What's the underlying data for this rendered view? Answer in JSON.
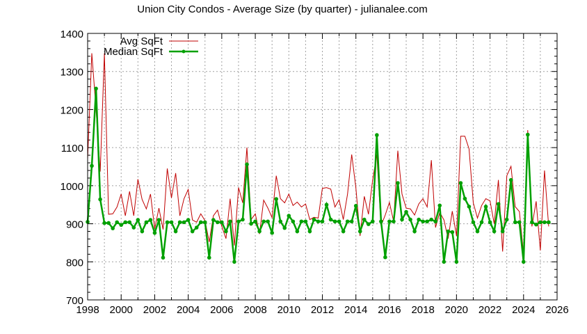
{
  "chart_data": {
    "type": "line",
    "title": "Union City Condos - Average Size (by quarter) - julianalee.com",
    "xlabel": "",
    "ylabel": "",
    "xlim": [
      1998,
      2026
    ],
    "ylim": [
      700,
      1400
    ],
    "x_ticks": [
      "1998",
      "2000",
      "2002",
      "2004",
      "2006",
      "2008",
      "2010",
      "2012",
      "2014",
      "2016",
      "2018",
      "2020",
      "2022",
      "2024",
      "2026"
    ],
    "y_ticks": [
      "700",
      "800",
      "900",
      "1000",
      "1100",
      "1200",
      "1300",
      "1400"
    ],
    "grid": true,
    "legend_position": "top-left",
    "x_start": 1998.0,
    "x_step": 0.25,
    "series": [
      {
        "name": "Avg SqFt",
        "color": "#c00000",
        "marker": false,
        "values": [
          1070,
          1348,
          1200,
          1037,
          1348,
          925,
          926,
          944,
          978,
          921,
          985,
          921,
          1017,
          964,
          939,
          978,
          887,
          941,
          885,
          1045,
          968,
          1033,
          921,
          966,
          990,
          910,
          904,
          926,
          908,
          852,
          921,
          936,
          893,
          861,
          966,
          843,
          995,
          955,
          1100,
          911,
          926,
          873,
          962,
          941,
          916,
          1026,
          966,
          955,
          978,
          948,
          957,
          944,
          952,
          911,
          917,
          915,
          993,
          995,
          991,
          944,
          963,
          911,
          978,
          1082,
          994,
          868,
          972,
          925,
          1015,
          1082,
          895,
          923,
          956,
          906,
          1092,
          978,
          941,
          939,
          923,
          952,
          966,
          944,
          1067,
          890,
          930,
          910,
          861,
          933,
          868,
          1130,
          1130,
          1097,
          955,
          915,
          948,
          966,
          960,
          900,
          1015,
          827,
          1026,
          1051,
          945,
          932,
          820,
          1146,
          893,
          959,
          830,
          1040,
          893
        ]
      },
      {
        "name": "Median SqFt",
        "color": "#00a000",
        "marker": true,
        "values": [
          905,
          1052,
          1255,
          964,
          902,
          902,
          888,
          904,
          897,
          904,
          904,
          890,
          910,
          880,
          904,
          910,
          876,
          910,
          811,
          904,
          904,
          880,
          904,
          904,
          910,
          880,
          890,
          904,
          904,
          811,
          910,
          904,
          904,
          880,
          906,
          800,
          906,
          911,
          1056,
          900,
          906,
          880,
          906,
          906,
          876,
          965,
          906,
          889,
          921,
          906,
          880,
          906,
          906,
          880,
          911,
          906,
          906,
          950,
          911,
          906,
          906,
          880,
          906,
          906,
          947,
          880,
          911,
          899,
          906,
          1133,
          906,
          812,
          906,
          906,
          1007,
          911,
          931,
          911,
          880,
          911,
          906,
          906,
          911,
          906,
          948,
          800,
          880,
          878,
          800,
          1007,
          966,
          945,
          904,
          880,
          904,
          945,
          904,
          880,
          952,
          880,
          911,
          1015,
          904,
          904,
          800,
          1134,
          904,
          898,
          904,
          904,
          904
        ]
      }
    ]
  }
}
